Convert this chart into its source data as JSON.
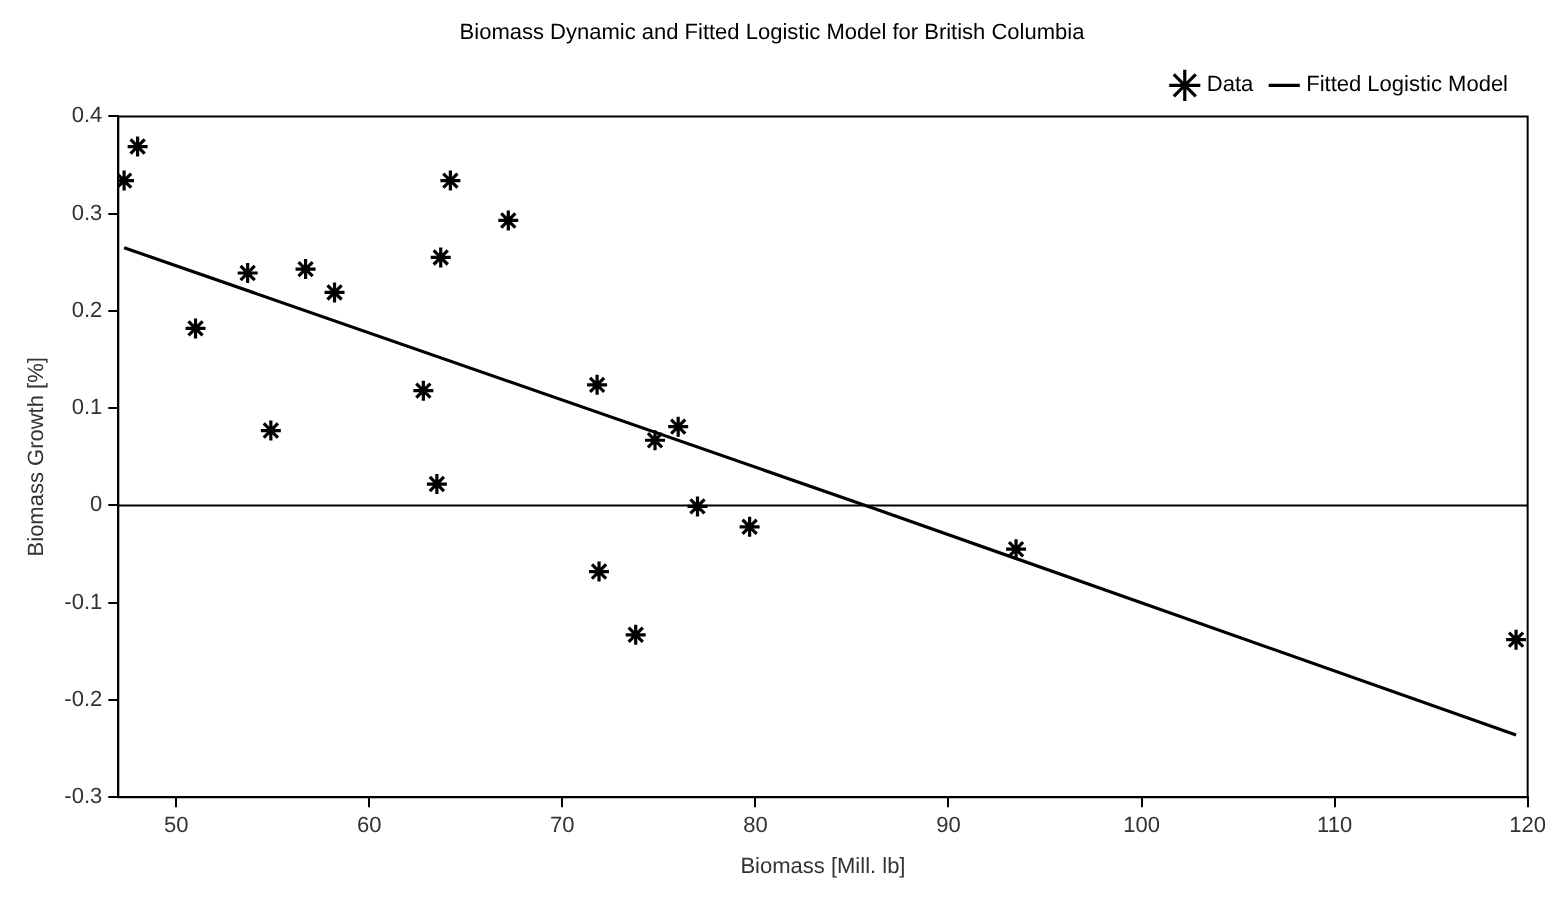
{
  "chart_data": {
    "type": "scatter",
    "title": "Biomass Dynamic and Fitted Logistic Model for British Columbia",
    "xlabel": "Biomass [Mill. lb]",
    "ylabel": "Biomass Growth [%]",
    "series": [
      {
        "name": "Data",
        "type": "scatter",
        "color": "#000000",
        "marker": "cross",
        "x": [
          47.3,
          48.0,
          51.0,
          53.7,
          54.9,
          56.7,
          58.2,
          62.8,
          63.5,
          63.7,
          64.2,
          67.2,
          71.8,
          71.9,
          73.8,
          74.8,
          76.0,
          77.0,
          79.7,
          93.5,
          119.4
        ],
        "values": [
          0.334,
          0.369,
          0.182,
          0.239,
          0.077,
          0.243,
          0.219,
          0.118,
          0.022,
          0.255,
          0.334,
          0.293,
          0.124,
          -0.068,
          -0.133,
          0.067,
          0.081,
          -0.001,
          -0.022,
          -0.045,
          -0.138
        ]
      },
      {
        "name": "Fitted Logistic Model",
        "type": "line",
        "color": "#000000",
        "marker": "none",
        "line_style": "solid",
        "x": [
          47.3,
          85.7,
          119.4
        ],
        "values": [
          0.265,
          0,
          -0.236
        ]
      }
    ],
    "xlim": [
      47,
      120
    ],
    "xticks": [
      50,
      60,
      70,
      80,
      90,
      100,
      110,
      120
    ],
    "ylim": [
      -0.3,
      0.4
    ],
    "yticks": [
      -0.3,
      -0.2,
      -0.1,
      0,
      0.1,
      0.2,
      0.3,
      0.4
    ],
    "ref_lines": [
      {
        "axis": "y",
        "value": 0,
        "color": "#000000"
      }
    ],
    "grid": false,
    "legend": "top right"
  }
}
